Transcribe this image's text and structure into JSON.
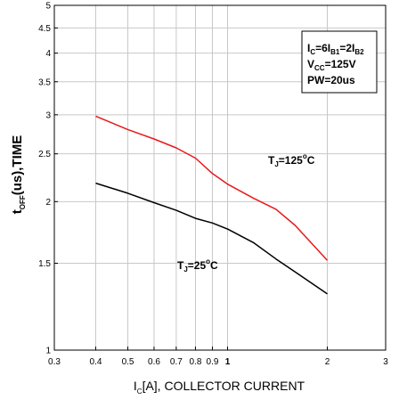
{
  "chart_data": {
    "type": "line",
    "x_scale": "log",
    "y_scale": "log",
    "xlim": [
      0.3,
      3
    ],
    "ylim": [
      1,
      5
    ],
    "grid": true,
    "x_ticks": [
      0.3,
      0.4,
      0.5,
      0.6,
      0.7,
      0.8,
      0.9,
      1,
      2,
      3
    ],
    "x_tick_labels": [
      "0.3",
      "0.4",
      "0.5",
      "0.6",
      "0.7",
      "0.8",
      "0.9",
      "1",
      "2",
      "3"
    ],
    "y_ticks": [
      1,
      1.5,
      2,
      2.5,
      3,
      3.5,
      4,
      4.5,
      5
    ],
    "y_tick_labels": [
      "1",
      "1.5",
      "2",
      "2.5",
      "3",
      "3.5",
      "4",
      "4.5",
      "5"
    ],
    "xlabel": {
      "main": "I",
      "sub": "C",
      "rest": "[A], COLLECTOR CURRENT"
    },
    "ylabel": {
      "main": "t",
      "sub": "OFF",
      "rest": "(us),TIME"
    },
    "series": [
      {
        "name": "TJ=125°C",
        "color": "#e8191b",
        "x": [
          0.4,
          0.5,
          0.6,
          0.7,
          0.8,
          0.9,
          1.0,
          1.2,
          1.4,
          1.6,
          2.0
        ],
        "y": [
          2.98,
          2.8,
          2.68,
          2.57,
          2.45,
          2.28,
          2.17,
          2.03,
          1.93,
          1.79,
          1.52
        ]
      },
      {
        "name": "TJ=25°C",
        "color": "#000000",
        "x": [
          0.4,
          0.5,
          0.6,
          0.7,
          0.8,
          0.9,
          1.0,
          1.2,
          1.4,
          1.6,
          2.0
        ],
        "y": [
          2.18,
          2.08,
          1.99,
          1.92,
          1.85,
          1.81,
          1.76,
          1.65,
          1.53,
          1.44,
          1.3
        ]
      }
    ],
    "annotations": {
      "t125": {
        "main": "T",
        "sub": "J",
        "eq": "=125",
        "sup": "o",
        "unit": "C"
      },
      "t25": {
        "main": "T",
        "sub": "J",
        "eq": "=25",
        "sup": "o",
        "unit": "C"
      }
    },
    "conditions": {
      "line1": {
        "p1": "I",
        "s1": "C",
        "p2": "=6I",
        "s2": "B1",
        "p3": "=2I",
        "s3": "B2"
      },
      "line2": {
        "p1": "V",
        "s1": "CC",
        "p2": "=125V"
      },
      "line3": "PW=20us"
    }
  }
}
